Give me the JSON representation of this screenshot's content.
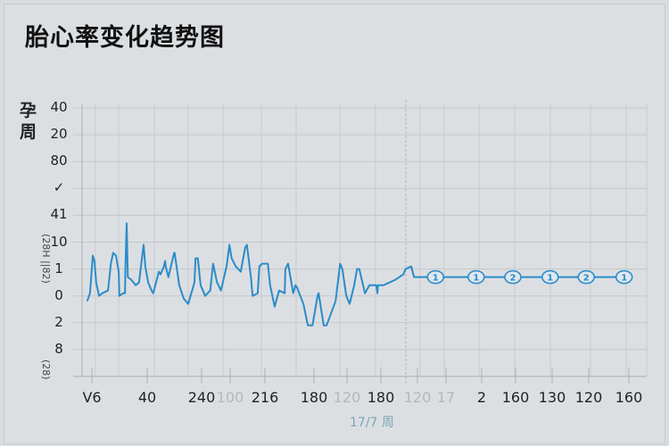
{
  "title": "胎心率变化趋势图",
  "chart_data": {
    "type": "line",
    "title": "胎心率变化趋势图",
    "ylabel": "孕周",
    "y_side_labels": [
      "(28H ||82)",
      "(28)"
    ],
    "y_ticks": [
      "40",
      "20",
      "80",
      "✓",
      "41",
      "10",
      "1",
      "0",
      "2",
      "8"
    ],
    "x_ticks": [
      {
        "label": "V6",
        "faint": false
      },
      {
        "label": "40",
        "faint": false
      },
      {
        "label": "240",
        "faint": false
      },
      {
        "label": "100",
        "faint": true
      },
      {
        "label": "216",
        "faint": false
      },
      {
        "label": "180",
        "faint": false
      },
      {
        "label": "120",
        "faint": true
      },
      {
        "label": "180",
        "faint": false
      },
      {
        "label": "120",
        "faint": true
      },
      {
        "label": "17",
        "faint": true
      },
      {
        "label": "2",
        "faint": false
      },
      {
        "label": "160",
        "faint": false
      },
      {
        "label": "130",
        "faint": false
      },
      {
        "label": "120",
        "faint": false
      },
      {
        "label": "160",
        "faint": false
      }
    ],
    "x_sublabel": "17/7 周",
    "xlim": [
      0,
      100
    ],
    "ylim": [
      0,
      100
    ],
    "grid": true,
    "line_color": "#2a8cc9",
    "series": [
      {
        "x": [
          0.9,
          1.4,
          1.9,
          2.2,
          2.5,
          3.0,
          3.6,
          4.6,
          5.1,
          5.5,
          6.0,
          6.5,
          6.6,
          7.3,
          7.6,
          7.7,
          7.9,
          8.1,
          8.7,
          9.5,
          10.1,
          10.6,
          10.9,
          11.2,
          11.7,
          12.3,
          12.6,
          13.6,
          13.9,
          14.5,
          14.7,
          14.8,
          15.3,
          16.3,
          16.4,
          17.2,
          18.0,
          18.8,
          19.9,
          20.1,
          20.5,
          21.0,
          21.8,
          22.7,
          23.2,
          23.9,
          24.6,
          25.6,
          26.1,
          26.5,
          27.2,
          28.1,
          28.9,
          29.2,
          29.9,
          30.2,
          31.1,
          31.4,
          31.9,
          32.9,
          33.3,
          34.1,
          34.9,
          35.9,
          36.0,
          36.5,
          37.4,
          37.8,
          38.1,
          39.2,
          40.0,
          40.8,
          41.7,
          41.9,
          42.8,
          43.3,
          44.9,
          45.7,
          46.1,
          46.8,
          47.4,
          48.2,
          48.7,
          49.1,
          50.1,
          50.9,
          52.1,
          52.3,
          52.4,
          53.4,
          55.5,
          56.9,
          57.3,
          58.3,
          58.8,
          59.2,
          59.7,
          96.0
        ],
        "y": [
          28,
          31,
          45,
          43,
          35,
          30,
          31,
          32,
          42,
          46,
          45,
          39,
          30,
          31,
          31,
          42,
          57,
          37,
          36,
          34,
          35,
          44,
          49,
          41,
          35,
          32,
          31,
          39,
          38,
          41,
          43,
          41,
          37,
          46,
          46,
          34,
          29,
          27,
          35,
          44,
          44,
          34,
          30,
          32,
          42,
          35,
          32,
          41,
          49,
          44,
          41,
          39,
          48,
          49,
          37,
          30,
          31,
          41,
          42,
          42,
          34,
          26,
          32,
          31,
          40,
          42,
          31,
          34,
          33,
          27,
          19,
          19,
          30,
          31,
          19,
          19,
          28,
          42,
          40,
          30,
          27,
          34,
          40,
          40,
          31,
          34,
          34,
          31,
          34,
          34,
          36,
          38,
          40,
          41,
          37,
          37,
          37,
          37
        ]
      }
    ],
    "markers": [
      {
        "x": 62.6,
        "y": 37,
        "label": "1"
      },
      {
        "x": 69.8,
        "y": 37,
        "label": "1"
      },
      {
        "x": 76.3,
        "y": 37,
        "label": "2"
      },
      {
        "x": 82.9,
        "y": 37,
        "label": "1"
      },
      {
        "x": 89.3,
        "y": 37,
        "label": "2"
      },
      {
        "x": 96.0,
        "y": 37,
        "label": "1"
      }
    ]
  }
}
